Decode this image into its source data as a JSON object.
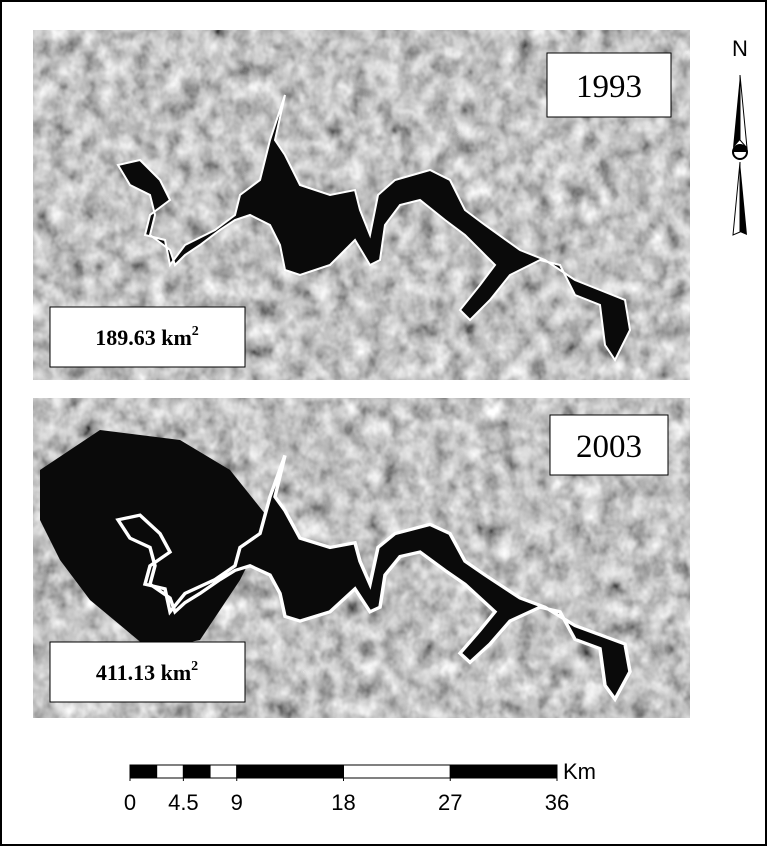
{
  "panels": [
    {
      "year": "1993",
      "area": "189.63 km",
      "area_exponent": "2"
    },
    {
      "year": "2003",
      "area": "411.13 km",
      "area_exponent": "2"
    }
  ],
  "north_label": "N",
  "scale_bar": {
    "unit": "Km",
    "ticks": [
      0,
      4.5,
      9,
      18,
      27,
      36
    ]
  }
}
